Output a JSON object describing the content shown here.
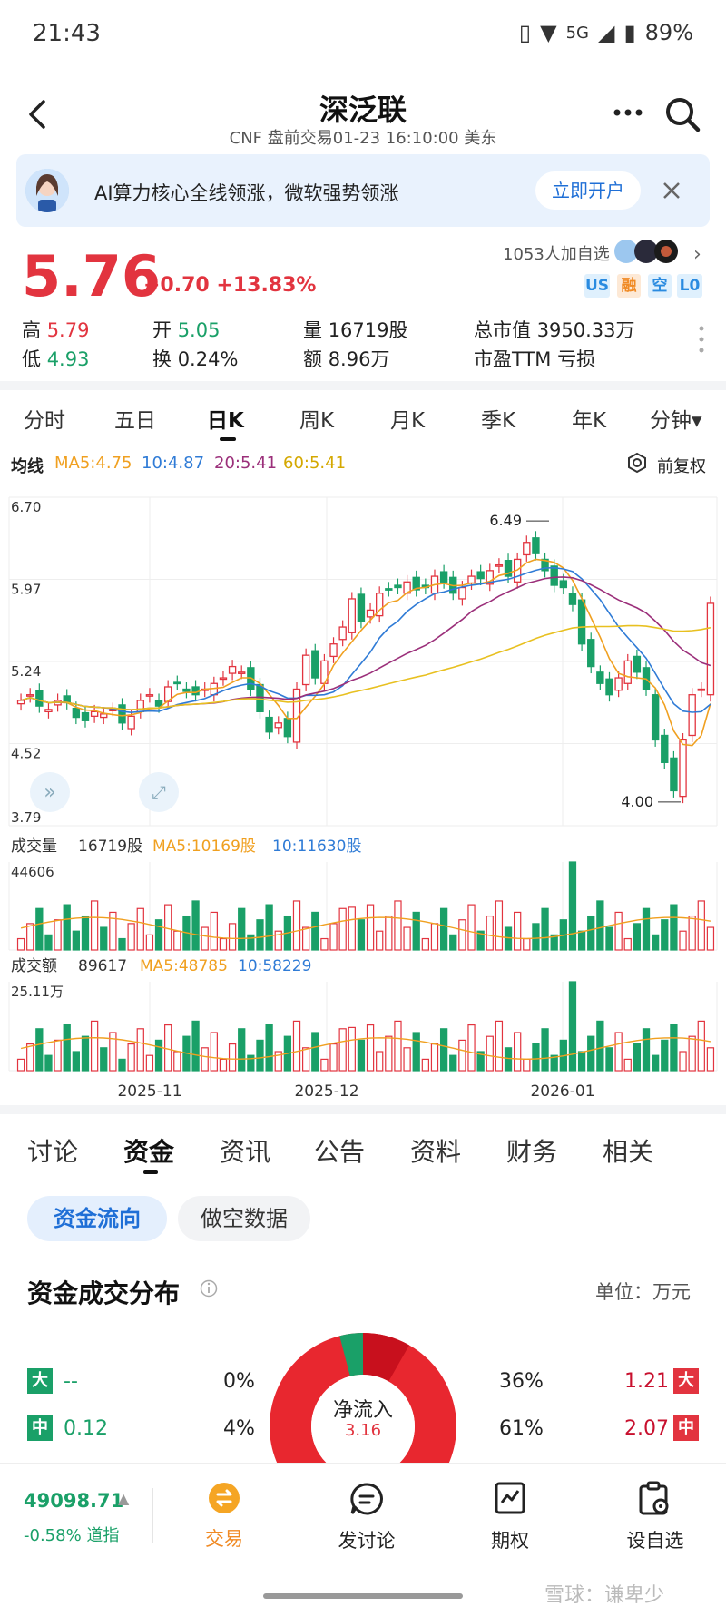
{
  "status": {
    "time": "21:43",
    "network": "5G",
    "battery": "89%"
  },
  "header": {
    "title": "深泛联",
    "subtitle": "CNF 盘前交易01-23 16:10:00 美东"
  },
  "banner": {
    "text": "AI算力核心全线领涨，微软强势领涨",
    "button": "立即开户"
  },
  "quote": {
    "price": "5.76",
    "change": "+0.70",
    "change_pct": "+13.83%",
    "watchers": "1053人加自选",
    "tags": [
      {
        "label": "US",
        "color": "#2a8be0"
      },
      {
        "label": "融",
        "color": "#f08a24"
      },
      {
        "label": "空",
        "color": "#2a8be0"
      },
      {
        "label": "L0",
        "color": "#2a8be0"
      }
    ]
  },
  "stats": {
    "high_label": "高",
    "high": "5.79",
    "low_label": "低",
    "low": "4.93",
    "open_label": "开",
    "open": "5.05",
    "turnover_label": "换",
    "turnover": "0.24%",
    "volume_label": "量",
    "volume": "16719股",
    "amount_label": "额",
    "amount": "8.96万",
    "mktcap_label": "总市值",
    "mktcap": "3950.33万",
    "pe_label": "市盈TTM",
    "pe": "亏损"
  },
  "period_tabs": [
    "分时",
    "五日",
    "日K",
    "周K",
    "月K",
    "季K",
    "年K",
    "分钟▾"
  ],
  "active_period": "日K",
  "ma_legend": {
    "label": "均线",
    "ma5": "MA5:4.75",
    "ma10": "10:4.87",
    "ma20": "20:5.41",
    "ma60": "60:5.41",
    "adjust": "前复权"
  },
  "colors": {
    "up": "#e2343f",
    "down": "#1aa068",
    "ma5": "#f0a020",
    "ma10": "#2f7bd6",
    "ma20": "#9b2f7a",
    "ma60": "#e8c020"
  },
  "chart_data": [
    {
      "type": "candlestick",
      "title": "日K",
      "ylim": [
        3.79,
        6.7
      ],
      "y_ticks": [
        "6.70",
        "5.97",
        "5.24",
        "4.52",
        "3.79"
      ],
      "x_ticks": [
        "2025-11",
        "2025-12",
        "2026-01"
      ],
      "annotations": [
        {
          "text": "6.49",
          "value": 6.49
        },
        {
          "text": "4.00",
          "value": 4.0
        }
      ],
      "series": [
        {
          "name": "MA5"
        },
        {
          "name": "10"
        },
        {
          "name": "20"
        },
        {
          "name": "60"
        }
      ]
    },
    {
      "type": "bar",
      "title": "成交量",
      "current": "16719股",
      "ma5": "MA5:10169股",
      "ma10": "10:11630股",
      "y_ticks": [
        "44606"
      ]
    },
    {
      "type": "bar",
      "title": "成交额",
      "current": "89617",
      "ma5": "MA5:48785",
      "ma10": "10:58229",
      "y_ticks": [
        "25.11万"
      ]
    }
  ],
  "content_tabs": [
    "讨论",
    "资金",
    "资讯",
    "公告",
    "资料",
    "财务",
    "相关"
  ],
  "active_content_tab": "资金",
  "fund_pills": [
    "资金流向",
    "做空数据"
  ],
  "fund": {
    "title": "资金成交分布",
    "unit": "单位：万元",
    "center_label": "净流入",
    "center_value": "3.16",
    "rows": [
      {
        "label": "大",
        "left_val": "--",
        "left_pct": "0%",
        "right_pct": "36%",
        "right_val": "1.21"
      },
      {
        "label": "中",
        "left_val": "0.12",
        "left_pct": "4%",
        "right_pct": "61%",
        "right_val": "2.07"
      }
    ]
  },
  "bottom_nav": {
    "index_value": "49098.71",
    "index_change": "-0.58%",
    "index_name": "道指",
    "items": [
      "交易",
      "发讨论",
      "期权",
      "设自选"
    ]
  },
  "watermark": "雪球：谦卑少"
}
